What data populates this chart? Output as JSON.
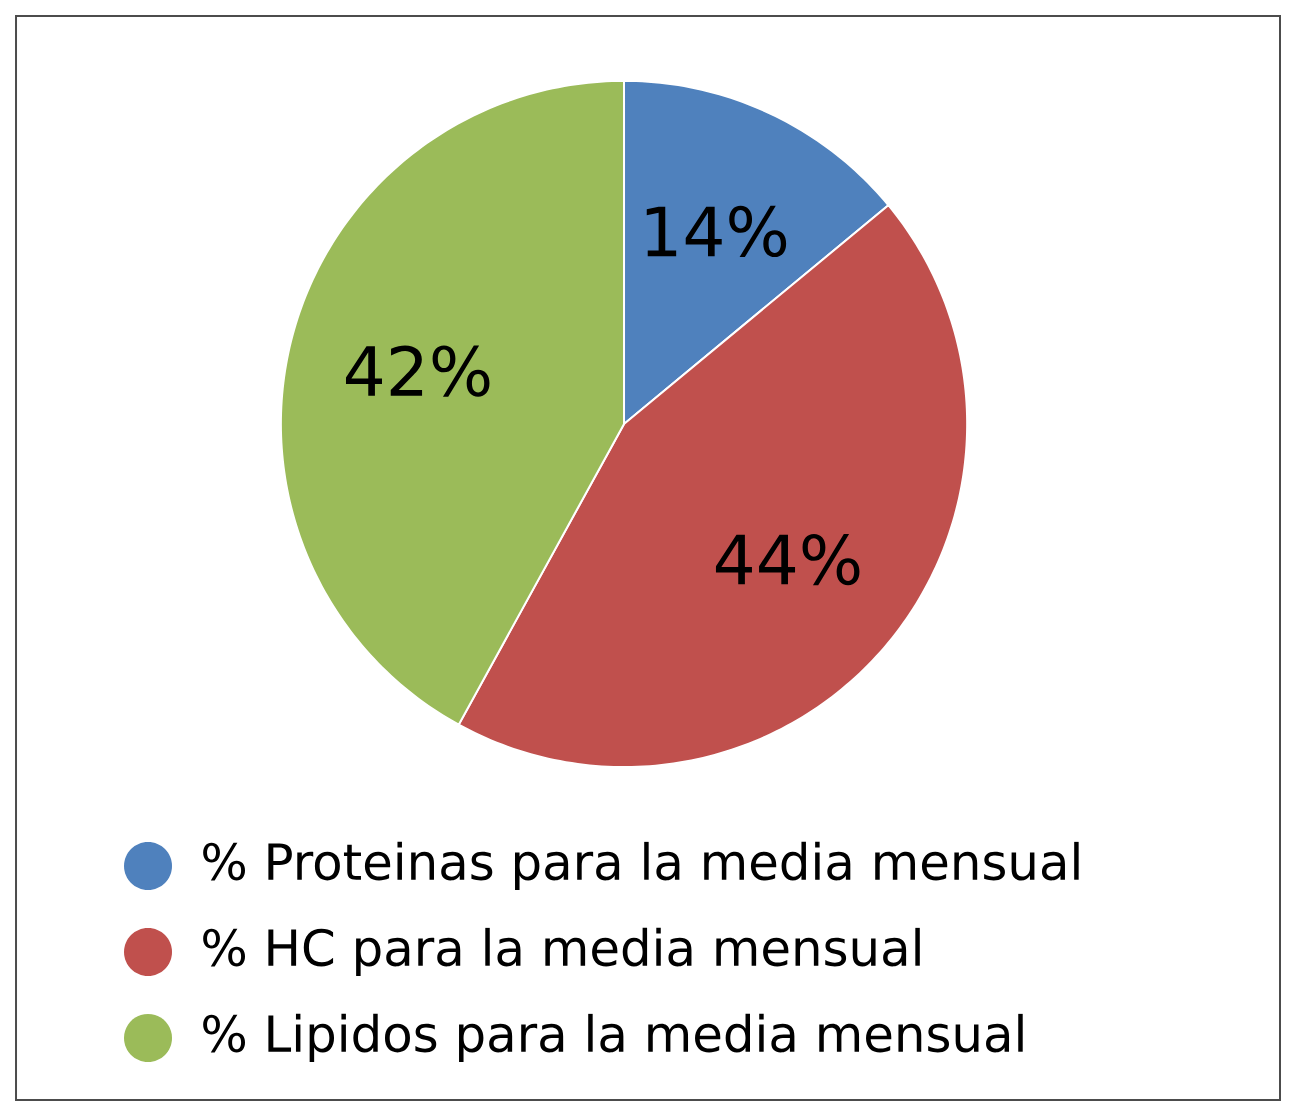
{
  "chart_data": {
    "type": "pie",
    "categories": [
      "% Proteinas para la media mensual",
      "% HC para la media mensual",
      "% Lipidos para la media mensual"
    ],
    "values": [
      14,
      44,
      42
    ],
    "colors": [
      "#4f81bd",
      "#c0504d",
      "#9bbb59"
    ],
    "value_labels": [
      "14%",
      "44%",
      "42%"
    ],
    "legend": "bottom"
  }
}
